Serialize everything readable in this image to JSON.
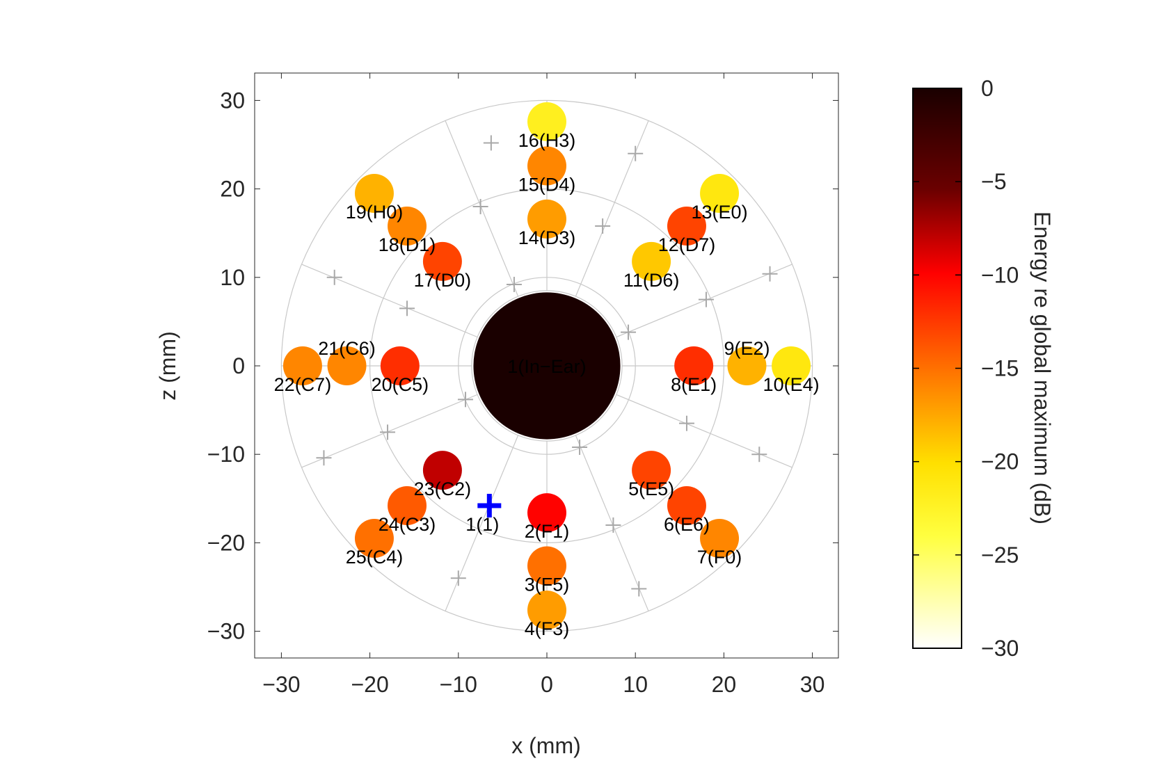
{
  "chart_data": {
    "type": "scatter",
    "title": "",
    "xlabel": "x (mm)",
    "ylabel": "z (mm)",
    "xlim": [
      -33,
      33
    ],
    "ylim": [
      -33,
      33
    ],
    "xticks": [
      -30,
      -20,
      -10,
      0,
      10,
      20,
      30
    ],
    "yticks": [
      -30,
      -20,
      -10,
      0,
      10,
      20,
      30
    ],
    "grid": "polar",
    "rings_mm": [
      10,
      20,
      30
    ],
    "inner_rings_mm": [
      8.5
    ],
    "spoke_angles_deg": [
      0,
      22.5,
      67.5,
      90,
      112.5,
      157.5,
      180,
      202.5,
      247.5,
      270,
      292.5,
      337.5
    ],
    "grid_markers": [
      {
        "x": -6.3,
        "z": 25.2
      },
      {
        "x": 10.0,
        "z": 24.0
      },
      {
        "x": -7.5,
        "z": 18.0
      },
      {
        "x": 6.3,
        "z": 15.8
      },
      {
        "x": -24.0,
        "z": 10.0
      },
      {
        "x": 25.2,
        "z": 10.4
      },
      {
        "x": -3.7,
        "z": 9.2
      },
      {
        "x": 18.0,
        "z": 7.5
      },
      {
        "x": -15.8,
        "z": 6.5
      },
      {
        "x": 9.2,
        "z": 3.8
      },
      {
        "x": -9.2,
        "z": -3.8
      },
      {
        "x": 15.8,
        "z": -6.5
      },
      {
        "x": -18.0,
        "z": -7.5
      },
      {
        "x": 3.7,
        "z": -9.2
      },
      {
        "x": -25.2,
        "z": -10.4
      },
      {
        "x": 24.0,
        "z": -10.0
      },
      {
        "x": 7.5,
        "z": -18.0
      },
      {
        "x": -10.0,
        "z": -24.0
      },
      {
        "x": 10.4,
        "z": -25.2
      }
    ],
    "points": [
      {
        "label": "1(In−Ear)",
        "x": 0,
        "z": 0,
        "db": 0,
        "size_mm": 8.3,
        "label_color": "#ffffff",
        "label_pos": "center"
      },
      {
        "label": "2(F1)",
        "x": 0,
        "z": -16.6,
        "db": -10,
        "label_pos": "below"
      },
      {
        "label": "3(F5)",
        "x": 0,
        "z": -22.6,
        "db": -15,
        "label_pos": "below"
      },
      {
        "label": "4(F3)",
        "x": 0,
        "z": -27.6,
        "db": -17,
        "label_pos": "below"
      },
      {
        "label": "5(E5)",
        "x": 11.8,
        "z": -11.8,
        "db": -13,
        "label_pos": "below"
      },
      {
        "label": "6(E6)",
        "x": 15.8,
        "z": -15.8,
        "db": -13,
        "label_pos": "below"
      },
      {
        "label": "7(F0)",
        "x": 19.5,
        "z": -19.5,
        "db": -16,
        "label_pos": "below"
      },
      {
        "label": "8(E1)",
        "x": 16.6,
        "z": 0,
        "db": -12,
        "label_pos": "below"
      },
      {
        "label": "9(E2)",
        "x": 22.6,
        "z": 0,
        "db": -18,
        "label_pos": "above"
      },
      {
        "label": "10(E4)",
        "x": 27.6,
        "z": 0,
        "db": -21,
        "label_pos": "below"
      },
      {
        "label": "11(D6)",
        "x": 11.8,
        "z": 11.8,
        "db": -19,
        "label_pos": "below"
      },
      {
        "label": "12(D7)",
        "x": 15.8,
        "z": 15.8,
        "db": -13,
        "label_pos": "below"
      },
      {
        "label": "13(E0)",
        "x": 19.5,
        "z": 19.5,
        "db": -21,
        "label_pos": "below"
      },
      {
        "label": "14(D3)",
        "x": 0,
        "z": 16.6,
        "db": -17,
        "label_pos": "below"
      },
      {
        "label": "15(D4)",
        "x": 0,
        "z": 22.6,
        "db": -16,
        "label_pos": "below"
      },
      {
        "label": "16(H3)",
        "x": 0,
        "z": 27.6,
        "db": -22,
        "label_pos": "below"
      },
      {
        "label": "17(D0)",
        "x": -11.8,
        "z": 11.8,
        "db": -13,
        "label_pos": "below"
      },
      {
        "label": "18(D1)",
        "x": -15.8,
        "z": 15.8,
        "db": -16,
        "label_pos": "below"
      },
      {
        "label": "19(H0)",
        "x": -19.5,
        "z": 19.5,
        "db": -18,
        "label_pos": "below"
      },
      {
        "label": "20(C5)",
        "x": -16.6,
        "z": 0,
        "db": -12,
        "label_pos": "below"
      },
      {
        "label": "21(C6)",
        "x": -22.6,
        "z": 0,
        "db": -16,
        "label_pos": "above"
      },
      {
        "label": "22(C7)",
        "x": -27.6,
        "z": 0,
        "db": -16,
        "label_pos": "below"
      },
      {
        "label": "23(C2)",
        "x": -11.8,
        "z": -11.8,
        "db": -8,
        "label_pos": "below"
      },
      {
        "label": "24(C3)",
        "x": -15.8,
        "z": -15.8,
        "db": -14,
        "label_pos": "below"
      },
      {
        "label": "25(C4)",
        "x": -19.5,
        "z": -19.5,
        "db": -15,
        "label_pos": "below"
      }
    ],
    "source_marker": {
      "label": "1(1)",
      "x": -6.5,
      "z": -15.8,
      "color": "#0000ff"
    },
    "colorbar": {
      "label": "Energy re global maximum (dB)",
      "range": [
        -30,
        0
      ],
      "ticks": [
        0,
        -5,
        -10,
        -15,
        -20,
        -25,
        -30
      ],
      "colormap": "hot"
    }
  }
}
